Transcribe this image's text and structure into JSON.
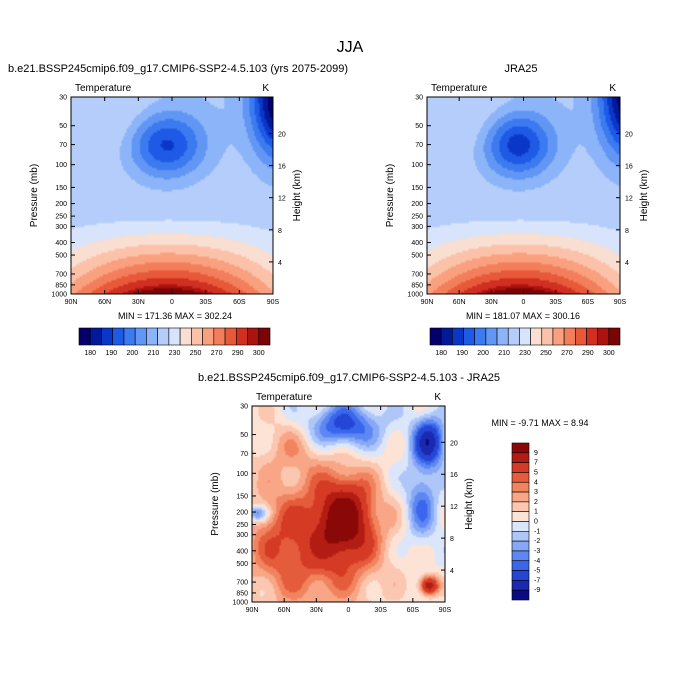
{
  "page_title": "JJA",
  "chart_data": [
    {
      "type": "heatmap",
      "title": "b.e21.BSSP245cmip6.f09_g17.CMIP6-SSP2-4.5.103 (yrs 2075-2099)",
      "subtitle_left": "Temperature",
      "subtitle_right": "K",
      "xlabel": "",
      "ylabel": "Pressure (mb)",
      "ylabel_right": "Height (km)",
      "x_ticks": [
        "90N",
        "60N",
        "30N",
        "0",
        "30S",
        "60S",
        "90S"
      ],
      "y_ticks": [
        "30",
        "50",
        "70",
        "100",
        "150",
        "200",
        "250",
        "300",
        "400",
        "500",
        "700",
        "850",
        "1000"
      ],
      "height_ticks": [
        "4",
        "8",
        "12",
        "16",
        "20"
      ],
      "stats": "MIN = 171.36   MAX = 302.24",
      "min": 171.36,
      "max": 302.24,
      "colorbar_labels": [
        "180",
        "190",
        "200",
        "210",
        "230",
        "250",
        "270",
        "290",
        "300"
      ],
      "contour_levels": [
        180,
        185,
        190,
        195,
        200,
        205,
        210,
        220,
        230,
        240,
        250,
        260,
        270,
        280,
        290,
        295,
        300
      ]
    },
    {
      "type": "heatmap",
      "title": "JRA25",
      "subtitle_left": "Temperature",
      "subtitle_right": "K",
      "xlabel": "",
      "ylabel": "Pressure (mb)",
      "ylabel_right": "Height (km)",
      "x_ticks": [
        "90N",
        "60N",
        "30N",
        "0",
        "30S",
        "60S",
        "90S"
      ],
      "y_ticks": [
        "30",
        "50",
        "70",
        "100",
        "150",
        "200",
        "250",
        "300",
        "400",
        "500",
        "700",
        "850",
        "1000"
      ],
      "height_ticks": [
        "4",
        "8",
        "12",
        "16",
        "20"
      ],
      "stats": "MIN = 181.07   MAX = 300.16",
      "min": 181.07,
      "max": 300.16,
      "colorbar_labels": [
        "180",
        "190",
        "200",
        "210",
        "230",
        "250",
        "270",
        "290",
        "300"
      ],
      "contour_levels": [
        180,
        185,
        190,
        195,
        200,
        205,
        210,
        220,
        230,
        240,
        250,
        260,
        270,
        280,
        290,
        295,
        300
      ]
    },
    {
      "type": "heatmap",
      "title": "b.e21.BSSP245cmip6.f09_g17.CMIP6-SSP2-4.5.103 - JRA25",
      "subtitle_left": "Temperature",
      "subtitle_right": "K",
      "xlabel": "",
      "ylabel": "Pressure (mb)",
      "ylabel_right": "Height (km)",
      "x_ticks": [
        "90N",
        "60N",
        "30N",
        "0",
        "30S",
        "60S",
        "90S"
      ],
      "y_ticks": [
        "30",
        "50",
        "70",
        "100",
        "150",
        "200",
        "250",
        "300",
        "400",
        "500",
        "700",
        "850",
        "1000"
      ],
      "height_ticks": [
        "4",
        "8",
        "12",
        "16",
        "20"
      ],
      "stats": "MIN =  -9.71   MAX =   8.94",
      "min": -9.71,
      "max": 8.94,
      "colorbar_labels": [
        "9",
        "7",
        "5",
        "4",
        "3",
        "2",
        "1",
        "0",
        "-1",
        "-2",
        "-3",
        "-4",
        "-5",
        "-7",
        "-9"
      ],
      "contour_levels": [
        -9,
        -7,
        -5,
        -4,
        -3,
        -2,
        -1,
        0,
        1,
        2,
        3,
        4,
        5,
        7,
        9
      ]
    }
  ],
  "colors": {
    "blue_red_17": [
      "#03006b",
      "#021a9a",
      "#0a37c8",
      "#1e5ae6",
      "#3c7af0",
      "#6296f5",
      "#8cb4f8",
      "#b4cdfa",
      "#d7e4fb",
      "#f9ded2",
      "#fbc2a9",
      "#f9a07f",
      "#f37e5c",
      "#e8593a",
      "#d13020",
      "#aa1310",
      "#7a0504"
    ],
    "diff_16": [
      "#0b0a82",
      "#1a2ab0",
      "#2446d6",
      "#3a66ec",
      "#5d87f2",
      "#86a8f6",
      "#afc6f9",
      "#dbe6fb",
      "#fde3d6",
      "#fbc7b0",
      "#f8a686",
      "#f1835f",
      "#e55c3c",
      "#d43a24",
      "#b31c12",
      "#8a0808"
    ]
  }
}
